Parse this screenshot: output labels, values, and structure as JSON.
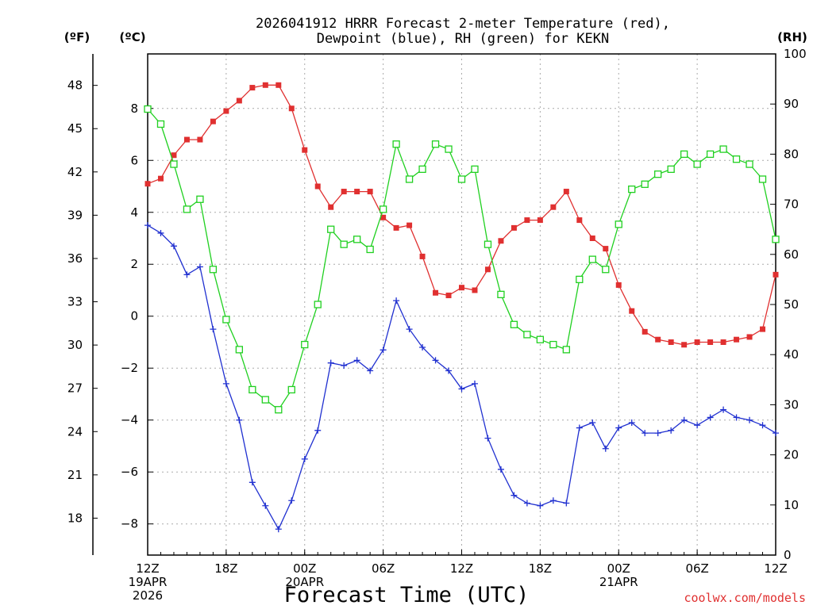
{
  "chart_data": {
    "type": "line",
    "title": "2026041912 HRRR Forecast 2-meter Temperature (red),",
    "subtitle": "Dewpoint (blue), RH (green) for KEKN",
    "xlabel": "Forecast Time (UTC)",
    "credit": "coolwx.com/models",
    "units": {
      "fahrenheit": "(ºF)",
      "celsius": "(ºC)",
      "rh": "(RH)"
    },
    "forecast_hours": [
      0,
      1,
      2,
      3,
      4,
      5,
      6,
      7,
      8,
      9,
      10,
      11,
      12,
      13,
      14,
      15,
      16,
      17,
      18,
      19,
      20,
      21,
      22,
      23,
      24,
      25,
      26,
      27,
      28,
      29,
      30,
      31,
      32,
      33,
      34,
      35,
      36,
      37,
      38,
      39,
      40,
      41,
      42,
      43,
      44,
      45,
      46,
      47,
      48
    ],
    "xlim": [
      0,
      48
    ],
    "x_ticks": [
      {
        "hour": 0,
        "lines": [
          "12Z",
          "19APR",
          "2026"
        ]
      },
      {
        "hour": 6,
        "lines": [
          "18Z"
        ]
      },
      {
        "hour": 12,
        "lines": [
          "00Z",
          "20APR"
        ]
      },
      {
        "hour": 18,
        "lines": [
          "06Z"
        ]
      },
      {
        "hour": 24,
        "lines": [
          "12Z"
        ]
      },
      {
        "hour": 30,
        "lines": [
          "18Z"
        ]
      },
      {
        "hour": 36,
        "lines": [
          "00Z",
          "21APR"
        ]
      },
      {
        "hour": 42,
        "lines": [
          "06Z"
        ]
      },
      {
        "hour": 48,
        "lines": [
          "12Z"
        ]
      }
    ],
    "celsius_axis": {
      "ylim": [
        -9.2,
        10.1
      ],
      "ticks": [
        -8,
        -6,
        -4,
        -2,
        0,
        2,
        4,
        6,
        8
      ]
    },
    "fahrenheit_ticks": [
      18,
      21,
      24,
      27,
      30,
      33,
      36,
      39,
      42,
      45,
      48
    ],
    "rh_axis": {
      "ylim": [
        0,
        100
      ],
      "ticks": [
        0,
        10,
        20,
        30,
        40,
        50,
        60,
        70,
        80,
        90,
        100
      ]
    },
    "grid": true,
    "series": [
      {
        "name": "Temperature",
        "axis": "celsius",
        "color": "#e03030",
        "marker": "filled-square",
        "values": [
          5.1,
          5.3,
          6.2,
          6.8,
          6.8,
          7.5,
          7.9,
          8.3,
          8.8,
          8.9,
          8.9,
          8.0,
          6.4,
          5.0,
          4.2,
          4.8,
          4.8,
          4.8,
          3.8,
          3.4,
          3.5,
          2.3,
          0.9,
          0.8,
          1.1,
          1.0,
          1.8,
          2.9,
          3.4,
          3.7,
          3.7,
          4.2,
          4.8,
          3.7,
          3.0,
          2.6,
          1.2,
          0.2,
          -0.6,
          -0.9,
          -1.0,
          -1.1,
          -1.0,
          -1.0,
          -1.0,
          -0.9,
          -0.8,
          -0.5,
          1.6
        ]
      },
      {
        "name": "Dewpoint",
        "axis": "celsius",
        "color": "#2030d0",
        "marker": "plus",
        "values": [
          3.5,
          3.2,
          2.7,
          1.6,
          1.9,
          -0.5,
          -2.6,
          -4.0,
          -6.4,
          -7.3,
          -8.2,
          -7.1,
          -5.5,
          -4.4,
          -1.8,
          -1.9,
          -1.7,
          -2.1,
          -1.3,
          0.6,
          -0.5,
          -1.2,
          -1.7,
          -2.1,
          -2.8,
          -2.6,
          -4.7,
          -5.9,
          -6.9,
          -7.2,
          -7.3,
          -7.1,
          -7.2,
          -4.3,
          -4.1,
          -5.1,
          -4.3,
          -4.1,
          -4.5,
          -4.5,
          -4.4,
          -4.0,
          -4.2,
          -3.9,
          -3.6,
          -3.9,
          -4.0,
          -4.2,
          -4.5
        ]
      },
      {
        "name": "RH",
        "axis": "rh",
        "color": "#20d020",
        "marker": "open-square",
        "values": [
          89,
          86,
          78,
          69,
          71,
          57,
          47,
          41,
          33,
          31,
          29,
          33,
          42,
          50,
          65,
          62,
          63,
          61,
          69,
          82,
          75,
          77,
          82,
          81,
          75,
          77,
          62,
          52,
          46,
          44,
          43,
          42,
          41,
          55,
          59,
          57,
          66,
          73,
          74,
          76,
          77,
          80,
          78,
          80,
          81,
          79,
          78,
          75,
          63
        ]
      }
    ]
  }
}
